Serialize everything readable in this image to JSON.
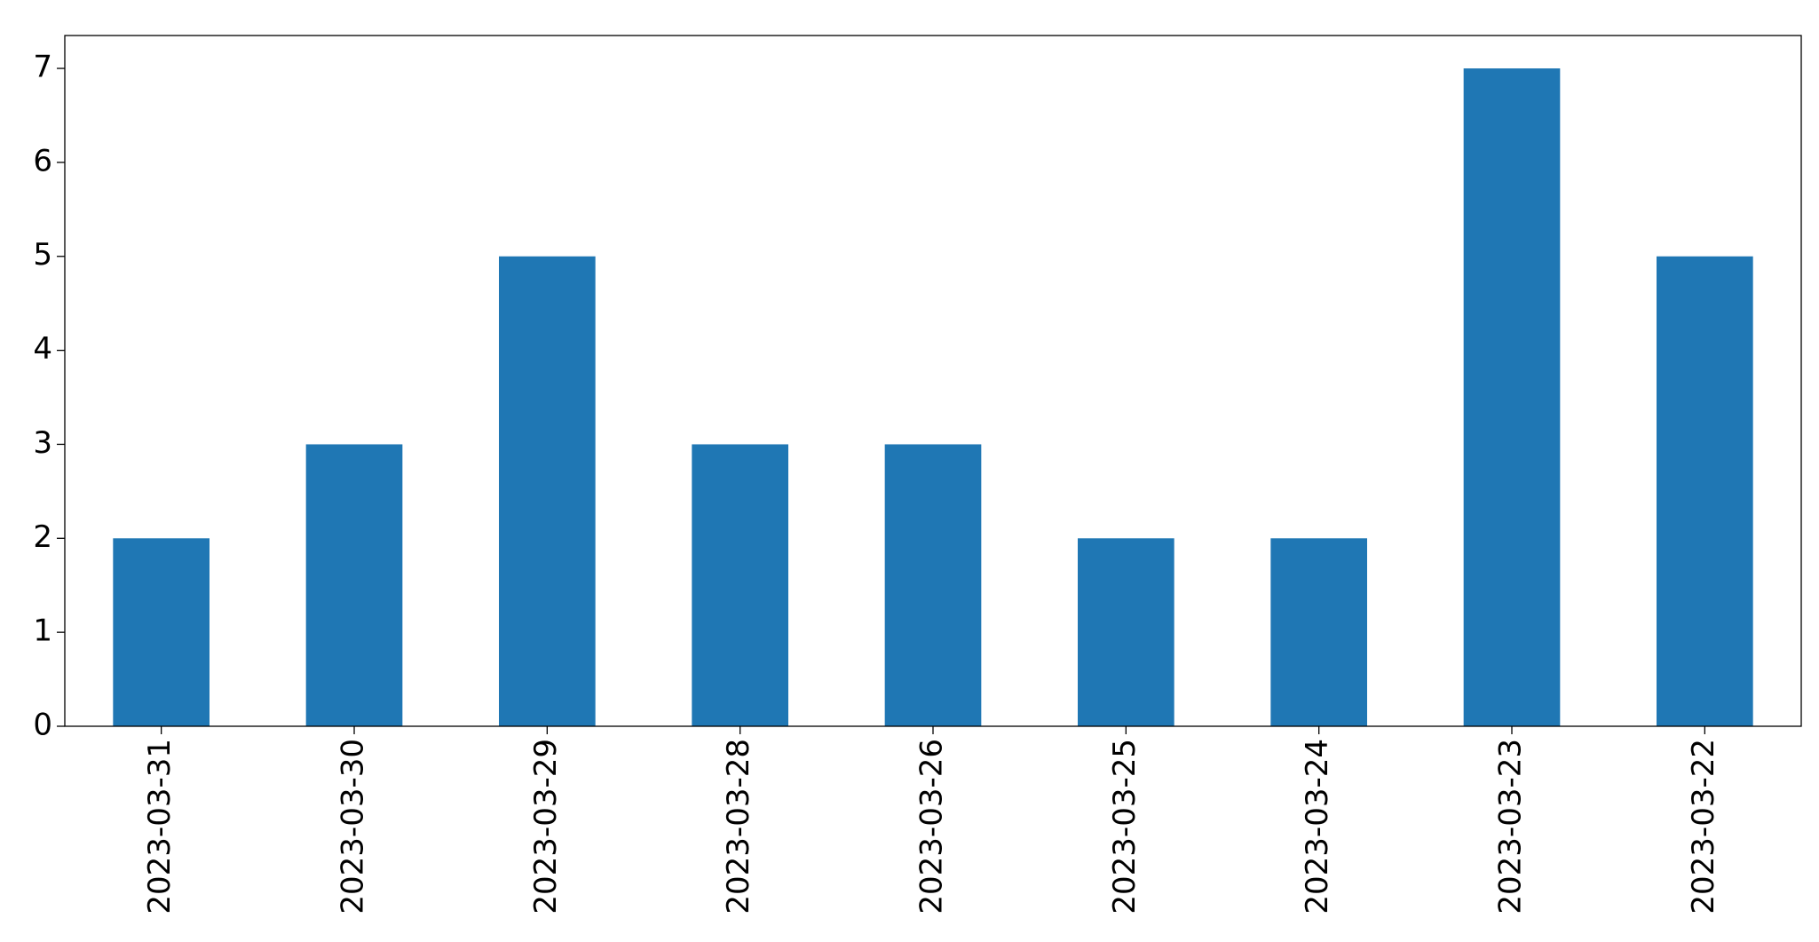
{
  "chart_data": {
    "type": "bar",
    "categories": [
      "2023-03-31",
      "2023-03-30",
      "2023-03-29",
      "2023-03-28",
      "2023-03-26",
      "2023-03-25",
      "2023-03-24",
      "2023-03-23",
      "2023-03-22"
    ],
    "values": [
      2,
      3,
      5,
      3,
      3,
      2,
      2,
      7,
      5
    ],
    "color": "#1f77b4",
    "ylim": [
      0,
      7.35
    ],
    "yticks": [
      0,
      1,
      2,
      3,
      4,
      5,
      6,
      7
    ],
    "grid": false
  }
}
